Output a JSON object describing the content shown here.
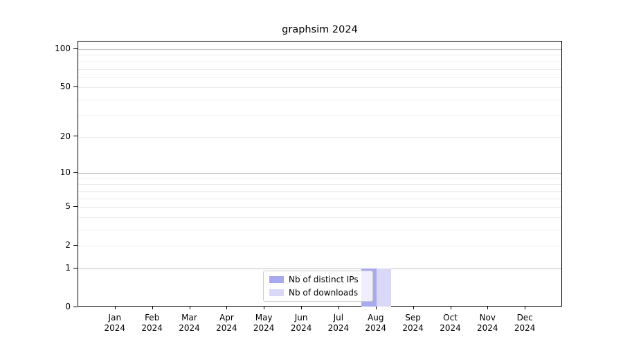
{
  "title": "graphsim 2024",
  "chart_data": {
    "type": "bar",
    "title": "graphsim 2024",
    "x_categories_months": [
      "Jan",
      "Feb",
      "Mar",
      "Apr",
      "May",
      "Jun",
      "Jul",
      "Aug",
      "Sep",
      "Oct",
      "Nov",
      "Dec"
    ],
    "x_year": "2024",
    "series": [
      {
        "name": "Nb of distinct IPs",
        "color": "#a9a9ee",
        "values": [
          0,
          0,
          0,
          0,
          0,
          0,
          0,
          1,
          0,
          0,
          0,
          0
        ]
      },
      {
        "name": "Nb of downloads",
        "color": "#d9d9f7",
        "values": [
          0,
          0,
          0,
          0,
          0,
          0,
          0,
          1,
          0,
          0,
          0,
          0
        ]
      }
    ],
    "y_axis": {
      "scale": "log1p",
      "tick_values": [
        100,
        50,
        20,
        10,
        5,
        2,
        1,
        0
      ],
      "min": 0,
      "max": 117
    },
    "grid": {
      "horizontal": true,
      "vertical": false,
      "major_gridline_values": [
        1,
        10,
        100
      ],
      "major_color": "#c3c3c3",
      "minor_color": "#ebebeb"
    },
    "legend": {
      "position": "lower-center",
      "items": [
        {
          "label": "Nb of distinct IPs",
          "color": "#a9a9ee"
        },
        {
          "label": "Nb of downloads",
          "color": "#d9d9f7"
        }
      ]
    }
  }
}
